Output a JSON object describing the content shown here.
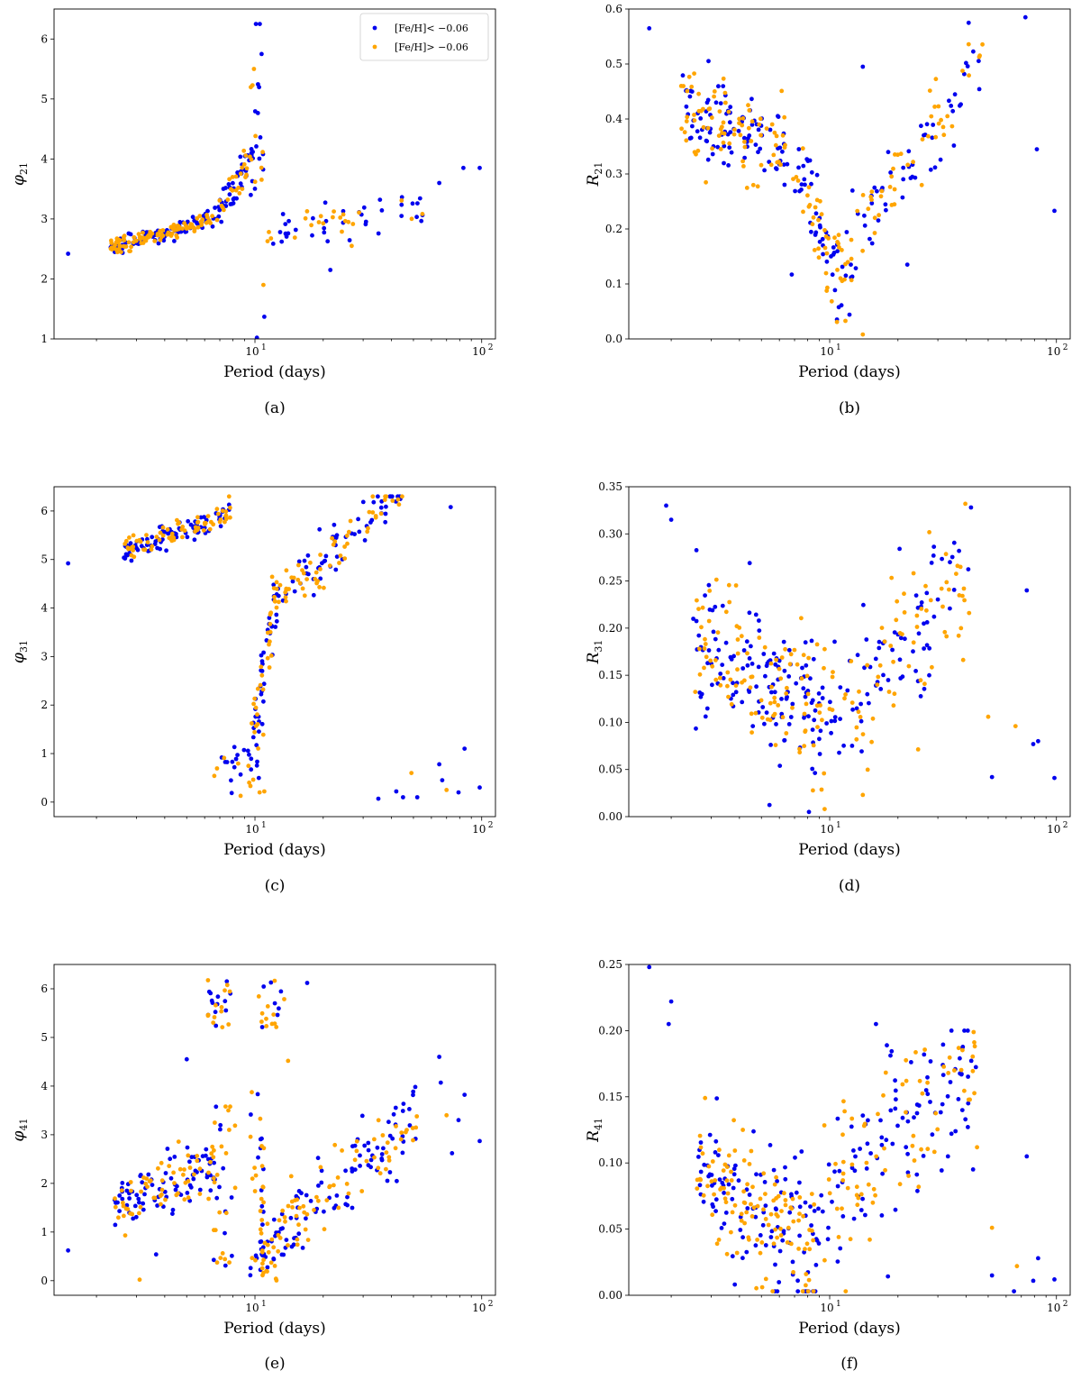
{
  "figure": {
    "colors": {
      "low_metallicity": "#0000ee",
      "high_metallicity": "#ffa500"
    }
  },
  "chart_data": [
    {
      "type": "scatter",
      "panel": "a",
      "caption": "(a)",
      "xlabel": "Period (days)",
      "ylabel": "φ",
      "ylabel_sub": "21",
      "xscale": "log",
      "xlim": [
        1.3,
        115
      ],
      "ylim": [
        1.0,
        6.5
      ],
      "yticks": [
        1,
        2,
        3,
        4,
        5,
        6
      ],
      "ytick_labels": [
        "1",
        "2",
        "3",
        "4",
        "5",
        "6"
      ],
      "xtick_labels": [
        {
          "base": "10",
          "exp": "1"
        },
        {
          "base": "10",
          "exp": "2"
        }
      ],
      "legend": {
        "position": "upper-right",
        "entries": [
          "[Fe/H]< −0.06",
          "[Fe/H]> −0.06"
        ]
      },
      "series": [
        {
          "name": "[Fe/H]< −0.06",
          "color": "#0000ee",
          "generator": {
            "n": 190,
            "seed": 11,
            "shape": "phi21",
            "frac": 0.5
          }
        },
        {
          "name": "[Fe/H]> −0.06",
          "color": "#ffa500",
          "generator": {
            "n": 160,
            "seed": 12,
            "shape": "phi21",
            "frac": 0.5
          }
        }
      ],
      "highlights": [
        {
          "series": 0,
          "x": 1.5,
          "y": 2.42
        },
        {
          "series": 0,
          "x": 10.1,
          "y": 6.25
        },
        {
          "series": 0,
          "x": 10.5,
          "y": 6.25
        },
        {
          "series": 0,
          "x": 10.7,
          "y": 5.75
        },
        {
          "series": 1,
          "x": 9.9,
          "y": 5.5
        },
        {
          "series": 0,
          "x": 11.0,
          "y": 1.37
        },
        {
          "series": 0,
          "x": 10.2,
          "y": 1.02
        },
        {
          "series": 1,
          "x": 10.9,
          "y": 1.9
        },
        {
          "series": 0,
          "x": 21.5,
          "y": 2.15
        },
        {
          "series": 0,
          "x": 83,
          "y": 3.85
        },
        {
          "series": 0,
          "x": 98,
          "y": 3.85
        },
        {
          "series": 0,
          "x": 65,
          "y": 3.6
        }
      ]
    },
    {
      "type": "scatter",
      "panel": "b",
      "caption": "(b)",
      "xlabel": "Period (days)",
      "ylabel": "R",
      "ylabel_sub": "21",
      "xscale": "log",
      "xlim": [
        1.3,
        115
      ],
      "ylim": [
        0.0,
        0.6
      ],
      "yticks": [
        0.0,
        0.1,
        0.2,
        0.3,
        0.4,
        0.5,
        0.6
      ],
      "ytick_labels": [
        "0.0",
        "0.1",
        "0.2",
        "0.3",
        "0.4",
        "0.5",
        "0.6"
      ],
      "xtick_labels": [
        {
          "base": "10",
          "exp": "1"
        },
        {
          "base": "10",
          "exp": "2"
        }
      ],
      "series": [
        {
          "name": "[Fe/H]< −0.06",
          "color": "#0000ee",
          "generator": {
            "n": 190,
            "seed": 21,
            "shape": "r21",
            "frac": 0.5
          }
        },
        {
          "name": "[Fe/H]> −0.06",
          "color": "#ffa500",
          "generator": {
            "n": 170,
            "seed": 22,
            "shape": "r21",
            "frac": 0.5
          }
        }
      ],
      "highlights": [
        {
          "series": 0,
          "x": 1.6,
          "y": 0.565
        },
        {
          "series": 0,
          "x": 73,
          "y": 0.585
        },
        {
          "series": 0,
          "x": 41,
          "y": 0.575
        },
        {
          "series": 0,
          "x": 14,
          "y": 0.495
        },
        {
          "series": 0,
          "x": 98,
          "y": 0.233
        },
        {
          "series": 1,
          "x": 14,
          "y": 0.008
        },
        {
          "series": 0,
          "x": 22,
          "y": 0.135
        },
        {
          "series": 0,
          "x": 6.8,
          "y": 0.117
        },
        {
          "series": 0,
          "x": 82,
          "y": 0.345
        }
      ]
    },
    {
      "type": "scatter",
      "panel": "c",
      "caption": "(c)",
      "xlabel": "Period (days)",
      "ylabel": "φ",
      "ylabel_sub": "31",
      "xscale": "log",
      "xlim": [
        1.3,
        115
      ],
      "ylim": [
        -0.3,
        6.5
      ],
      "yticks": [
        0,
        1,
        2,
        3,
        4,
        5,
        6
      ],
      "ytick_labels": [
        "0",
        "1",
        "2",
        "3",
        "4",
        "5",
        "6"
      ],
      "xtick_labels": [
        {
          "base": "10",
          "exp": "1"
        },
        {
          "base": "10",
          "exp": "2"
        }
      ],
      "series": [
        {
          "name": "[Fe/H]< −0.06",
          "color": "#0000ee",
          "generator": {
            "n": 200,
            "seed": 31,
            "shape": "phi31",
            "frac": 0.5
          }
        },
        {
          "name": "[Fe/H]> −0.06",
          "color": "#ffa500",
          "generator": {
            "n": 170,
            "seed": 32,
            "shape": "phi31",
            "frac": 0.5
          }
        }
      ],
      "highlights": [
        {
          "series": 0,
          "x": 1.5,
          "y": 4.92
        },
        {
          "series": 0,
          "x": 73,
          "y": 6.08
        },
        {
          "series": 0,
          "x": 35,
          "y": 0.07
        },
        {
          "series": 0,
          "x": 42,
          "y": 0.22
        },
        {
          "series": 0,
          "x": 45,
          "y": 0.1
        },
        {
          "series": 0,
          "x": 52,
          "y": 0.1
        },
        {
          "series": 0,
          "x": 65,
          "y": 0.78
        },
        {
          "series": 0,
          "x": 67,
          "y": 0.45
        },
        {
          "series": 0,
          "x": 84,
          "y": 1.1
        },
        {
          "series": 0,
          "x": 98,
          "y": 0.3
        },
        {
          "series": 0,
          "x": 79,
          "y": 0.2
        },
        {
          "series": 1,
          "x": 49,
          "y": 0.6
        },
        {
          "series": 1,
          "x": 70,
          "y": 0.25
        },
        {
          "series": 1,
          "x": 11.0,
          "y": 0.22
        }
      ]
    },
    {
      "type": "scatter",
      "panel": "d",
      "caption": "(d)",
      "xlabel": "Period (days)",
      "ylabel": "R",
      "ylabel_sub": "31",
      "xscale": "log",
      "xlim": [
        1.3,
        115
      ],
      "ylim": [
        0.0,
        0.35
      ],
      "yticks": [
        0.0,
        0.05,
        0.1,
        0.15,
        0.2,
        0.25,
        0.3,
        0.35
      ],
      "ytick_labels": [
        "0.00",
        "0.05",
        "0.10",
        "0.15",
        "0.20",
        "0.25",
        "0.30",
        "0.35"
      ],
      "xtick_labels": [
        {
          "base": "10",
          "exp": "1"
        },
        {
          "base": "10",
          "exp": "2"
        }
      ],
      "series": [
        {
          "name": "[Fe/H]< −0.06",
          "color": "#0000ee",
          "generator": {
            "n": 210,
            "seed": 41,
            "shape": "r31",
            "frac": 0.5
          }
        },
        {
          "name": "[Fe/H]> −0.06",
          "color": "#ffa500",
          "generator": {
            "n": 170,
            "seed": 42,
            "shape": "r31",
            "frac": 0.5
          }
        }
      ],
      "highlights": [
        {
          "series": 0,
          "x": 1.9,
          "y": 0.33
        },
        {
          "series": 0,
          "x": 2.0,
          "y": 0.315
        },
        {
          "series": 0,
          "x": 42,
          "y": 0.328
        },
        {
          "series": 0,
          "x": 98,
          "y": 0.041
        },
        {
          "series": 0,
          "x": 74,
          "y": 0.24
        },
        {
          "series": 0,
          "x": 79,
          "y": 0.077
        },
        {
          "series": 0,
          "x": 83,
          "y": 0.08
        },
        {
          "series": 0,
          "x": 52,
          "y": 0.042
        },
        {
          "series": 1,
          "x": 14,
          "y": 0.023
        },
        {
          "series": 0,
          "x": 8.1,
          "y": 0.005
        },
        {
          "series": 1,
          "x": 66,
          "y": 0.096
        },
        {
          "series": 1,
          "x": 50,
          "y": 0.106
        }
      ]
    },
    {
      "type": "scatter",
      "panel": "e",
      "caption": "(e)",
      "xlabel": "Period (days)",
      "ylabel": "φ",
      "ylabel_sub": "41",
      "xscale": "log",
      "xlim": [
        1.3,
        115
      ],
      "ylim": [
        -0.3,
        6.5
      ],
      "yticks": [
        0,
        1,
        2,
        3,
        4,
        5,
        6
      ],
      "ytick_labels": [
        "0",
        "1",
        "2",
        "3",
        "4",
        "5",
        "6"
      ],
      "xtick_labels": [
        {
          "base": "10",
          "exp": "1"
        },
        {
          "base": "10",
          "exp": "2"
        }
      ],
      "series": [
        {
          "name": "[Fe/H]< −0.06",
          "color": "#0000ee",
          "generator": {
            "n": 230,
            "seed": 51,
            "shape": "phi41",
            "frac": 0.5
          }
        },
        {
          "name": "[Fe/H]> −0.06",
          "color": "#ffa500",
          "generator": {
            "n": 210,
            "seed": 52,
            "shape": "phi41",
            "frac": 0.5
          }
        }
      ],
      "highlights": [
        {
          "series": 0,
          "x": 1.5,
          "y": 0.62
        },
        {
          "series": 0,
          "x": 17,
          "y": 6.12
        },
        {
          "series": 1,
          "x": 3.1,
          "y": 0.02
        },
        {
          "series": 0,
          "x": 65,
          "y": 4.6
        },
        {
          "series": 0,
          "x": 66,
          "y": 4.07
        },
        {
          "series": 0,
          "x": 84,
          "y": 3.82
        },
        {
          "series": 0,
          "x": 98,
          "y": 2.87
        },
        {
          "series": 0,
          "x": 74,
          "y": 2.62
        },
        {
          "series": 1,
          "x": 70,
          "y": 3.4
        },
        {
          "series": 0,
          "x": 79,
          "y": 3.3
        },
        {
          "series": 1,
          "x": 14,
          "y": 4.52
        },
        {
          "series": 0,
          "x": 5.0,
          "y": 4.55
        }
      ]
    },
    {
      "type": "scatter",
      "panel": "f",
      "caption": "(f)",
      "xlabel": "Period (days)",
      "ylabel": "R",
      "ylabel_sub": "41",
      "xscale": "log",
      "xlim": [
        1.3,
        115
      ],
      "ylim": [
        0.0,
        0.25
      ],
      "yticks": [
        0.0,
        0.05,
        0.1,
        0.15,
        0.2,
        0.25
      ],
      "ytick_labels": [
        "0.00",
        "0.05",
        "0.10",
        "0.15",
        "0.20",
        "0.25"
      ],
      "xtick_labels": [
        {
          "base": "10",
          "exp": "1"
        },
        {
          "base": "10",
          "exp": "2"
        }
      ],
      "series": [
        {
          "name": "[Fe/H]< −0.06",
          "color": "#0000ee",
          "generator": {
            "n": 220,
            "seed": 61,
            "shape": "r41",
            "frac": 0.5
          }
        },
        {
          "name": "[Fe/H]> −0.06",
          "color": "#ffa500",
          "generator": {
            "n": 190,
            "seed": 62,
            "shape": "r41",
            "frac": 0.5
          }
        }
      ],
      "highlights": [
        {
          "series": 0,
          "x": 1.6,
          "y": 0.248
        },
        {
          "series": 0,
          "x": 1.95,
          "y": 0.205
        },
        {
          "series": 0,
          "x": 2.0,
          "y": 0.222
        },
        {
          "series": 0,
          "x": 98,
          "y": 0.012
        },
        {
          "series": 0,
          "x": 74,
          "y": 0.105
        },
        {
          "series": 0,
          "x": 83,
          "y": 0.028
        },
        {
          "series": 0,
          "x": 79,
          "y": 0.011
        },
        {
          "series": 0,
          "x": 52,
          "y": 0.015
        },
        {
          "series": 0,
          "x": 65,
          "y": 0.003
        },
        {
          "series": 1,
          "x": 67,
          "y": 0.022
        },
        {
          "series": 1,
          "x": 52,
          "y": 0.051
        },
        {
          "series": 0,
          "x": 16,
          "y": 0.205
        }
      ]
    }
  ]
}
